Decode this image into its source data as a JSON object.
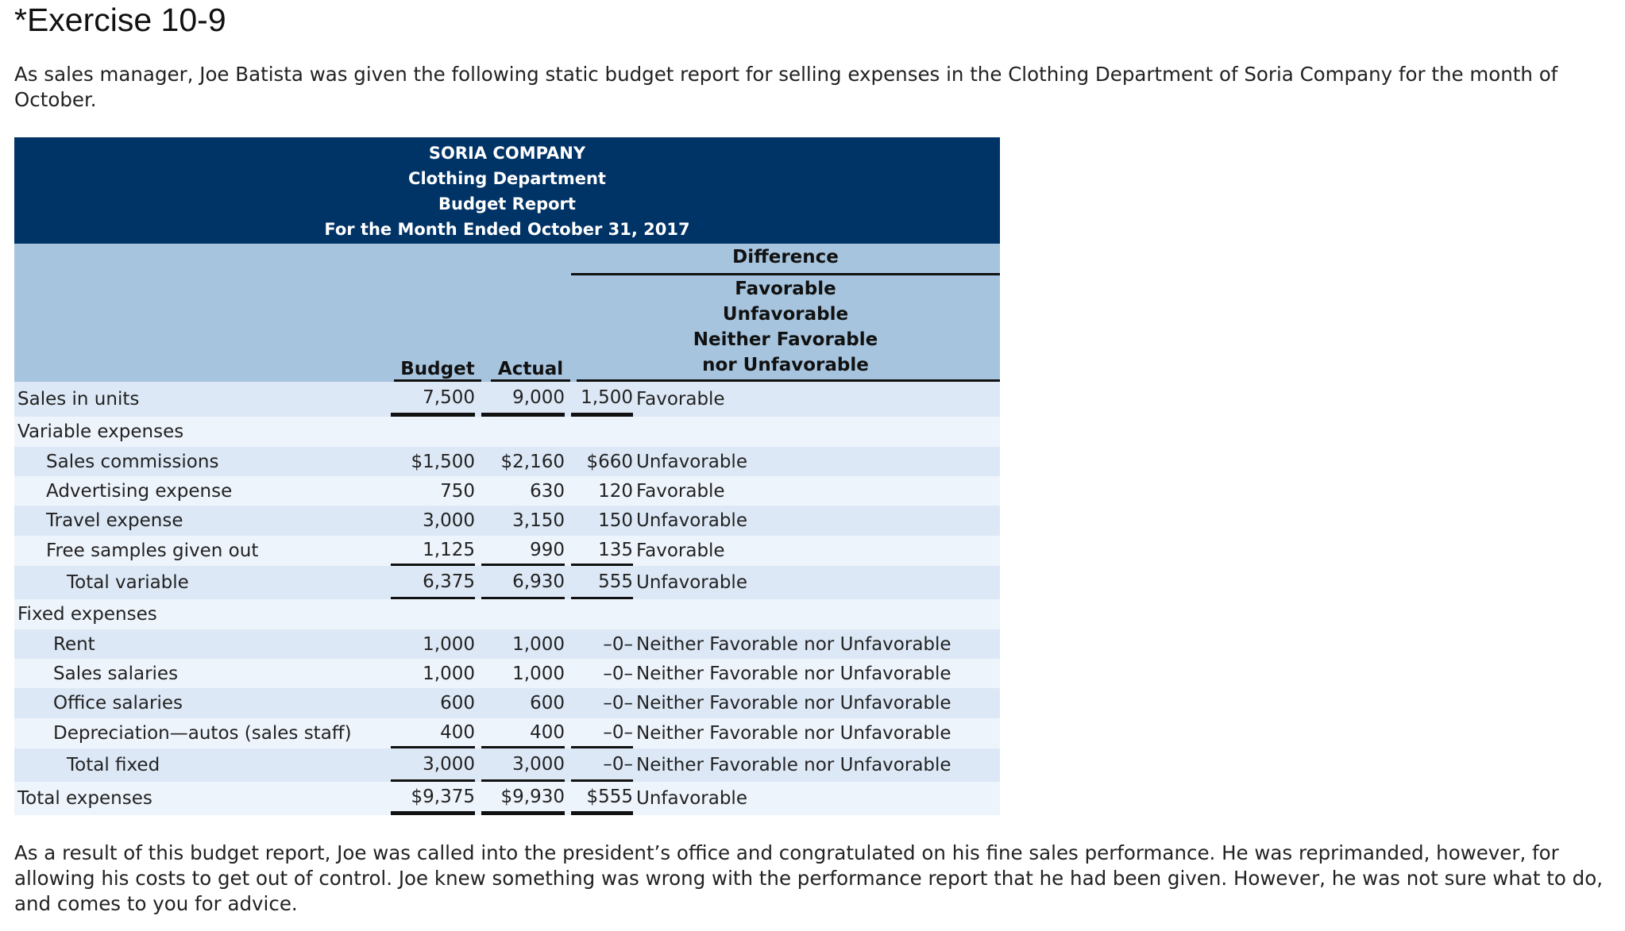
{
  "title": "*Exercise 10-9",
  "intro": "As sales manager, Joe Batista was given the following static budget report for selling expenses in the Clothing Department of Soria Company for the month of October.",
  "report": {
    "company": "SORIA COMPANY",
    "department": "Clothing Department",
    "report_name": "Budget Report",
    "period": "For the Month Ended October 31, 2017",
    "difference_header": "Difference",
    "difference_options": [
      "Favorable",
      "Unfavorable",
      "Neither Favorable",
      "nor Unfavorable"
    ],
    "col_budget": "Budget",
    "col_actual": "Actual",
    "rows": [
      {
        "label": "Sales in units",
        "budget": "7,500",
        "actual": "9,000",
        "diff": "1,500",
        "result": "Favorable"
      },
      {
        "label": "Variable expenses",
        "budget": "",
        "actual": "",
        "diff": "",
        "result": ""
      },
      {
        "label": "Sales commissions",
        "budget": "$1,500",
        "actual": "$2,160",
        "diff": "$660",
        "result": "Unfavorable"
      },
      {
        "label": "Advertising expense",
        "budget": "750",
        "actual": "630",
        "diff": "120",
        "result": "Favorable"
      },
      {
        "label": "Travel expense",
        "budget": "3,000",
        "actual": "3,150",
        "diff": "150",
        "result": "Unfavorable"
      },
      {
        "label": "Free samples given out",
        "budget": "1,125",
        "actual": "990",
        "diff": "135",
        "result": "Favorable"
      },
      {
        "label": "Total variable",
        "budget": "6,375",
        "actual": "6,930",
        "diff": "555",
        "result": "Unfavorable"
      },
      {
        "label": "Fixed expenses",
        "budget": "",
        "actual": "",
        "diff": "",
        "result": ""
      },
      {
        "label": "Rent",
        "budget": "1,000",
        "actual": "1,000",
        "diff": "–0–",
        "result": "Neither Favorable nor Unfavorable"
      },
      {
        "label": "Sales salaries",
        "budget": "1,000",
        "actual": "1,000",
        "diff": "–0–",
        "result": "Neither Favorable nor Unfavorable"
      },
      {
        "label": "Office salaries",
        "budget": "600",
        "actual": "600",
        "diff": "–0–",
        "result": "Neither Favorable nor Unfavorable"
      },
      {
        "label": "Depreciation—autos (sales staff)",
        "budget": "400",
        "actual": "400",
        "diff": "–0–",
        "result": "Neither Favorable nor Unfavorable"
      },
      {
        "label": "Total fixed",
        "budget": "3,000",
        "actual": "3,000",
        "diff": "–0–",
        "result": "Neither Favorable nor Unfavorable"
      },
      {
        "label": "Total expenses",
        "budget": "$9,375",
        "actual": "$9,930",
        "diff": "$555",
        "result": "Unfavorable"
      }
    ]
  },
  "outro": "As a result of this budget report, Joe was called into the president’s office and congratulated on his fine sales performance. He was reprimanded, however, for allowing his costs to get out of control. Joe knew something was wrong with the performance report that he had been given. However, he was not sure what to do, and comes to you for advice.",
  "colors": {
    "header_dark": "#003366",
    "header_light": "#a6c4de",
    "row_a": "#dde8f6",
    "row_b": "#eef4fc"
  }
}
